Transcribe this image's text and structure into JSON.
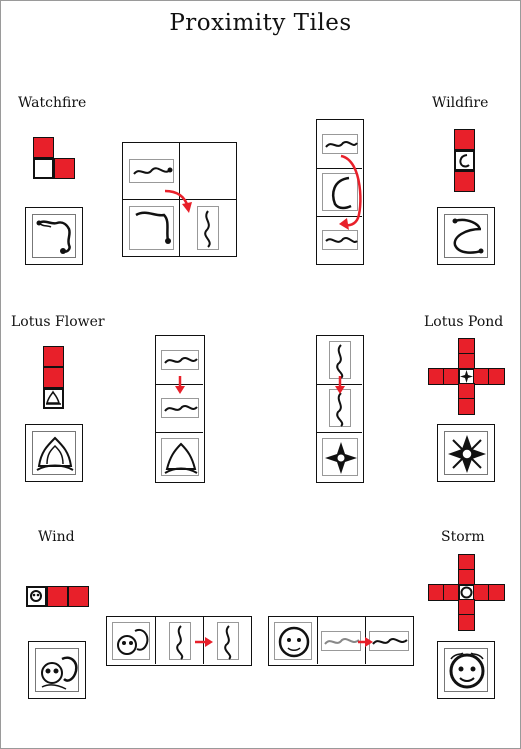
{
  "title": "Proximity Tiles",
  "tiles": [
    {
      "name": "Watchfire"
    },
    {
      "name": "Wildfire"
    },
    {
      "name": "Lotus Flower"
    },
    {
      "name": "Lotus Pond"
    },
    {
      "name": "Wind"
    },
    {
      "name": "Storm"
    }
  ],
  "colors": {
    "highlight": "#e8202a",
    "ink": "#111111"
  },
  "icons": [
    "dragon-icon",
    "lotus-icon",
    "compass-icon",
    "skull-icon",
    "face-icon",
    "arrow-icon"
  ]
}
